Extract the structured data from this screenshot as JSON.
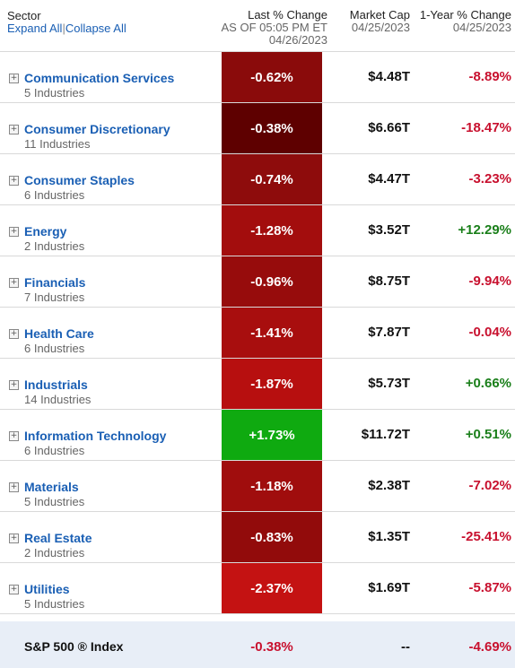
{
  "header": {
    "sector_label": "Sector",
    "expand_all": "Expand All",
    "separator": "|",
    "collapse_all": "Collapse All",
    "last_change_label": "Last % Change",
    "last_change_asof": "AS OF 05:05 PM ET",
    "last_change_date": "04/26/2023",
    "market_cap_label": "Market Cap",
    "market_cap_date": "04/25/2023",
    "year_change_label": "1-Year % Change",
    "year_change_date": "04/25/2023"
  },
  "colors": {
    "link": "#1a5fb4",
    "negative_text": "#c8102e",
    "positive_text": "#1a7f1a",
    "positive_cell": "#0faa10",
    "footer_bg": "#e8eef7"
  },
  "sectors": [
    {
      "name": "Communication Services",
      "industries": "5 Industries",
      "change": "-0.62%",
      "cell_color": "#8a0b0b",
      "market_cap": "$4.48T",
      "year_change": "-8.89%",
      "year_dir": "neg"
    },
    {
      "name": "Consumer Discretionary",
      "industries": "11 Industries",
      "change": "-0.38%",
      "cell_color": "#5e0000",
      "market_cap": "$6.66T",
      "year_change": "-18.47%",
      "year_dir": "neg"
    },
    {
      "name": "Consumer Staples",
      "industries": "6 Industries",
      "change": "-0.74%",
      "cell_color": "#8e0c0c",
      "market_cap": "$4.47T",
      "year_change": "-3.23%",
      "year_dir": "neg"
    },
    {
      "name": "Energy",
      "industries": "2 Industries",
      "change": "-1.28%",
      "cell_color": "#a30d0d",
      "market_cap": "$3.52T",
      "year_change": "+12.29%",
      "year_dir": "pos"
    },
    {
      "name": "Financials",
      "industries": "7 Industries",
      "change": "-0.96%",
      "cell_color": "#970c0c",
      "market_cap": "$8.75T",
      "year_change": "-9.94%",
      "year_dir": "neg"
    },
    {
      "name": "Health Care",
      "industries": "6 Industries",
      "change": "-1.41%",
      "cell_color": "#a80e0e",
      "market_cap": "$7.87T",
      "year_change": "-0.04%",
      "year_dir": "neg"
    },
    {
      "name": "Industrials",
      "industries": "14 Industries",
      "change": "-1.87%",
      "cell_color": "#b70f0f",
      "market_cap": "$5.73T",
      "year_change": "+0.66%",
      "year_dir": "pos"
    },
    {
      "name": "Information Technology",
      "industries": "6 Industries",
      "change": "+1.73%",
      "cell_color": "#0faa10",
      "market_cap": "$11.72T",
      "year_change": "+0.51%",
      "year_dir": "pos"
    },
    {
      "name": "Materials",
      "industries": "5 Industries",
      "change": "-1.18%",
      "cell_color": "#a00d0d",
      "market_cap": "$2.38T",
      "year_change": "-7.02%",
      "year_dir": "neg"
    },
    {
      "name": "Real Estate",
      "industries": "2 Industries",
      "change": "-0.83%",
      "cell_color": "#920b0b",
      "market_cap": "$1.35T",
      "year_change": "-25.41%",
      "year_dir": "neg"
    },
    {
      "name": "Utilities",
      "industries": "5 Industries",
      "change": "-2.37%",
      "cell_color": "#c41212",
      "market_cap": "$1.69T",
      "year_change": "-5.87%",
      "year_dir": "neg"
    }
  ],
  "footer": {
    "label": "S&P 500 ® Index",
    "change": "-0.38%",
    "market_cap": "--",
    "year_change": "-4.69%"
  }
}
